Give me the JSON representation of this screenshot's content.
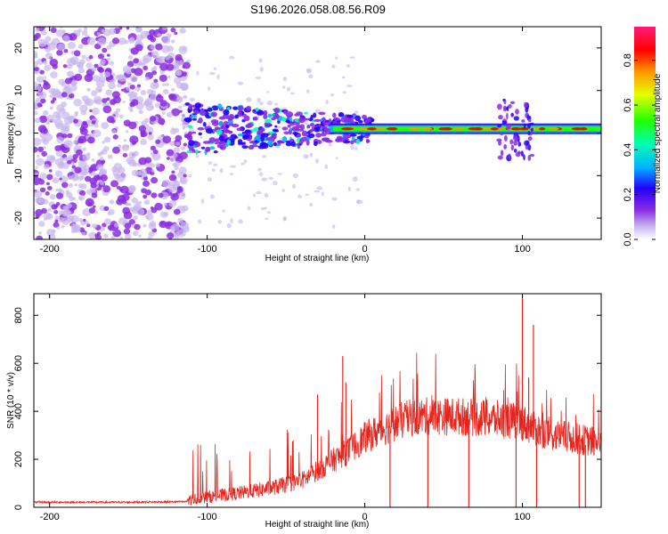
{
  "title": "S196.2026.058.08.56.R09",
  "chart_data": [
    {
      "type": "heatmap",
      "name": "spectrogram",
      "xlabel": "Height of straight line (km)",
      "ylabel": "Frequency (Hz)",
      "xlim": [
        -210,
        150
      ],
      "ylim": [
        -25,
        25
      ],
      "x_ticks": [
        -200,
        -100,
        0,
        100
      ],
      "y_ticks": [
        -20,
        -10,
        0,
        10,
        20
      ],
      "x_tick_labels": [
        "-200",
        "-100",
        "0",
        "100"
      ],
      "y_tick_labels": [
        "-20",
        "-10",
        "0",
        "10",
        "20"
      ],
      "noise_region_km": [
        -210,
        -113
      ],
      "signal_start_km": -113,
      "signal_line_hz": 1,
      "colorbar": {
        "label": "Normalized spectral amplitude",
        "range": [
          0,
          0.95
        ],
        "ticks": [
          0,
          0.2,
          0.4,
          0.6,
          0.8
        ],
        "tick_labels": [
          "0.0",
          "0.2",
          "0.4",
          "0.6",
          "0.8"
        ],
        "colors": [
          "#c7b7ee",
          "#8b2be2",
          "#2200ff",
          "#00b4ff",
          "#00ffb0",
          "#24ff00",
          "#e6ff00",
          "#ff9400",
          "#ff0000",
          "#ff1a7a"
        ]
      }
    },
    {
      "type": "line",
      "name": "snr",
      "xlabel": "Height of straight line (km)",
      "ylabel": "SNR (10 * v/v)",
      "xlim": [
        -210,
        150
      ],
      "ylim": [
        0,
        890
      ],
      "x_ticks": [
        -200,
        -100,
        0,
        100
      ],
      "y_ticks": [
        0,
        200,
        400,
        600,
        800
      ],
      "x_tick_labels": [
        "-200",
        "-100",
        "0",
        "100"
      ],
      "y_tick_labels": [
        "0",
        "200",
        "400",
        "600",
        "800"
      ],
      "color": "#e8231c",
      "series": [
        {
          "name": "SNR baseline",
          "x": [
            -210,
            -150,
            -113,
            -100,
            -80,
            -60,
            -40,
            -30,
            -20,
            -10,
            0,
            10,
            20,
            30,
            40,
            60,
            80,
            95,
            100,
            110,
            120,
            130,
            140,
            150
          ],
          "values": [
            20,
            20,
            22,
            35,
            50,
            70,
            100,
            140,
            180,
            220,
            270,
            300,
            330,
            350,
            355,
            355,
            345,
            335,
            330,
            300,
            280,
            270,
            260,
            250
          ]
        }
      ],
      "spikes": [
        {
          "x": -30,
          "value": 470
        },
        {
          "x": -14,
          "value": 630
        },
        {
          "x": -12,
          "value": 520
        },
        {
          "x": 100,
          "value": 880
        },
        {
          "x": 107,
          "value": 760
        },
        {
          "x": 104,
          "value": 540
        }
      ],
      "dropouts": [
        16,
        40,
        66,
        96,
        109,
        136,
        140
      ]
    }
  ]
}
